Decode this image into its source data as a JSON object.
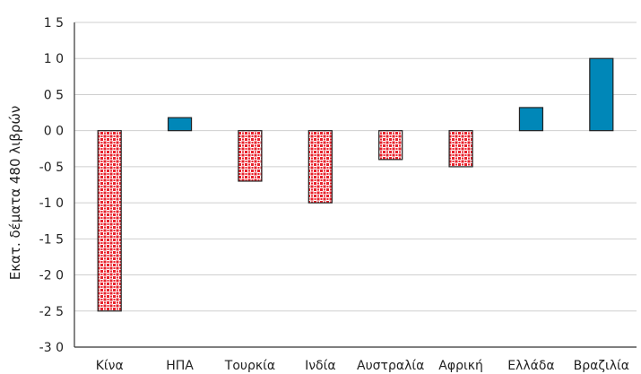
{
  "chart_data": {
    "type": "bar",
    "title": "",
    "xlabel": "",
    "ylabel": "Εκατ. δέματα 480 λιβρών",
    "categories": [
      "Κίνα",
      "ΗΠΑ",
      "Τουρκία",
      "Ινδία",
      "Αυστραλία",
      "Αφρική",
      "Ελλάδα",
      "Βραζιλία"
    ],
    "values": [
      -25,
      1.8,
      -7,
      -10,
      -4,
      -5,
      3.2,
      10
    ],
    "ylim": [
      -30,
      15
    ],
    "yticks": [
      15,
      10,
      5,
      0,
      -5,
      -10,
      -15,
      -20,
      -25,
      -30
    ],
    "ytick_labels": [
      "1 5",
      "1 0",
      "0 5",
      "0 0",
      "-0 5",
      "-1 0",
      "-1 5",
      "-2 0",
      "-2 5",
      "-3 0"
    ],
    "grid": true,
    "colors": {
      "positive": "#0087b8",
      "negative_fill": "#e8212b",
      "negative_background": "#ffffff",
      "grid": "#cfcfcf",
      "plot_background": "#ffffff"
    }
  }
}
